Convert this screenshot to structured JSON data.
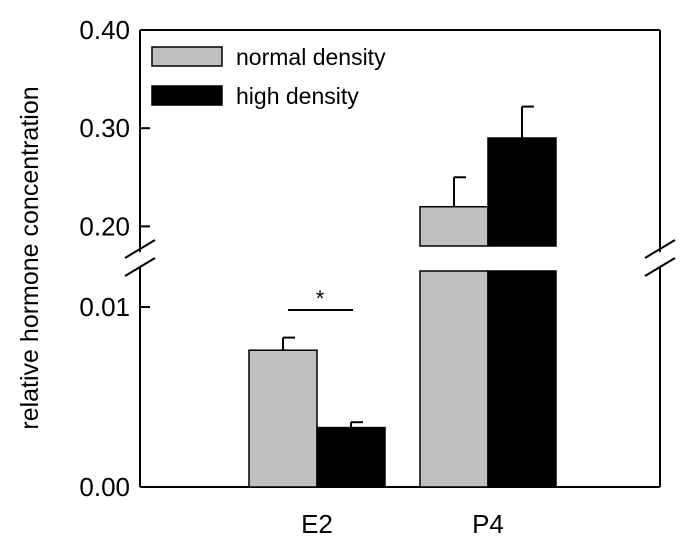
{
  "chart_data": {
    "type": "bar",
    "title": "",
    "xlabel": "",
    "ylabel": "relative hormone concentration",
    "categories": [
      "E2",
      "P4"
    ],
    "series": [
      {
        "name": "normal density",
        "color": "#c0c0c0",
        "values": [
          0.0076,
          0.22
        ],
        "errors": [
          0.0007,
          0.03
        ]
      },
      {
        "name": "high density",
        "color": "#000000",
        "values": [
          0.0033,
          0.29
        ],
        "errors": [
          0.0003,
          0.032
        ]
      }
    ],
    "axis_break": true,
    "lower_ylim": [
      0.0,
      0.012
    ],
    "upper_ylim": [
      0.18,
      0.4
    ],
    "yticks_lower": [
      "0.00",
      "0.01"
    ],
    "yticks_upper": [
      "0.20",
      "0.30",
      "0.40"
    ],
    "ytick_values_lower": [
      0.0,
      0.01
    ],
    "ytick_values_upper": [
      0.2,
      0.3,
      0.4
    ],
    "legend_position": "top-left",
    "annotations": [
      {
        "text": "*",
        "category": "E2"
      }
    ]
  }
}
